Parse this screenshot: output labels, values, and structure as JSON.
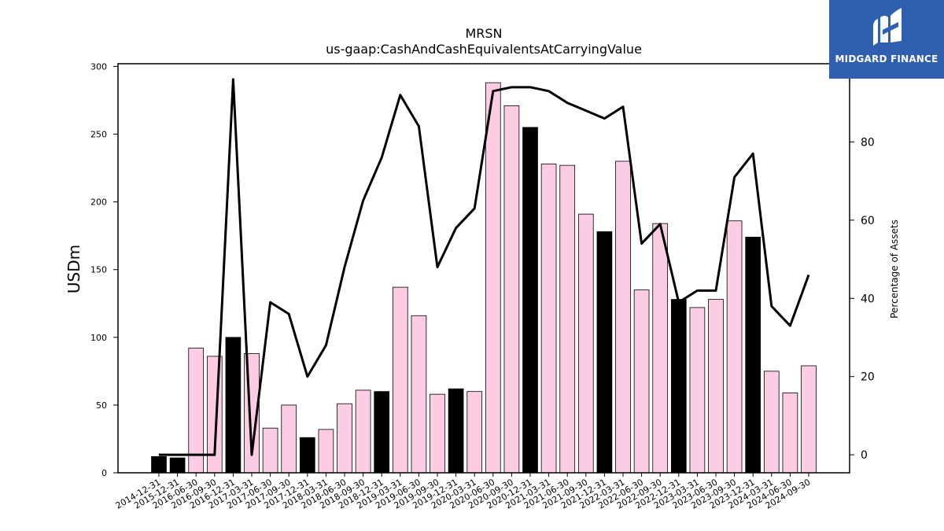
{
  "chart_data": {
    "type": "bar",
    "title": "MRSN",
    "subtitle": "us-gaap:CashAndCashEquivalentsAtCarryingValue",
    "ylabel": "USDm",
    "ylabel_right": "Percentage of Assets",
    "ylim": [
      0,
      302
    ],
    "ylim_right": [
      -4.6,
      100
    ],
    "yticks": [
      0,
      50,
      100,
      150,
      200,
      250,
      300
    ],
    "yticks_right": [
      0,
      20,
      40,
      60,
      80
    ],
    "categories": [
      "2014-12-31",
      "2015-12-31",
      "2016-06-30",
      "2016-09-30",
      "2016-12-31",
      "2017-03-31",
      "2017-06-30",
      "2017-09-30",
      "2017-12-31",
      "2018-03-31",
      "2018-06-30",
      "2018-09-30",
      "2018-12-31",
      "2019-03-31",
      "2019-06-30",
      "2019-09-30",
      "2019-12-31",
      "2020-03-31",
      "2020-06-30",
      "2020-09-30",
      "2020-12-31",
      "2021-03-31",
      "2021-06-30",
      "2021-09-30",
      "2021-12-31",
      "2022-03-31",
      "2022-06-30",
      "2022-09-30",
      "2022-12-31",
      "2023-03-31",
      "2023-06-30",
      "2023-09-30",
      "2023-12-31",
      "2024-03-31",
      "2024-06-30",
      "2024-09-30"
    ],
    "series": [
      {
        "kind": "bar",
        "values": [
          12,
          11,
          92,
          86,
          100,
          88,
          33,
          50,
          26,
          32,
          51,
          61,
          60,
          137,
          116,
          58,
          62,
          60,
          288,
          271,
          255,
          228,
          227,
          191,
          178,
          230,
          135,
          184,
          128,
          122,
          128,
          186,
          174,
          75,
          59,
          79
        ],
        "annual": [
          true,
          true,
          false,
          false,
          true,
          false,
          false,
          false,
          true,
          false,
          false,
          false,
          true,
          false,
          false,
          false,
          true,
          false,
          false,
          false,
          true,
          false,
          false,
          false,
          true,
          false,
          false,
          false,
          true,
          false,
          false,
          false,
          true,
          false,
          false,
          false
        ]
      },
      {
        "kind": "line",
        "axis": "right",
        "values": [
          0,
          0,
          0,
          0,
          96,
          0,
          39,
          36,
          20,
          28,
          48,
          65,
          76,
          92,
          84,
          48,
          58,
          63,
          93,
          94,
          94,
          93,
          90,
          88,
          86,
          89,
          54,
          59,
          39,
          42,
          42,
          71,
          77,
          38,
          33,
          46
        ]
      }
    ],
    "colors": {
      "annual_bar": "#000000",
      "quarter_bar": "#fbcce3",
      "line": "#000000",
      "logo_bg": "#2f5fae"
    }
  },
  "logo": {
    "text": "MIDGARD FINANCE",
    "icon": "midgard-logo-icon"
  }
}
